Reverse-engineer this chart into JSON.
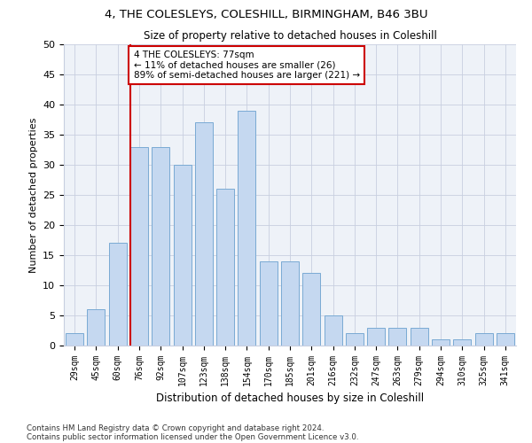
{
  "title_line1": "4, THE COLESLEYS, COLESHILL, BIRMINGHAM, B46 3BU",
  "title_line2": "Size of property relative to detached houses in Coleshill",
  "xlabel": "Distribution of detached houses by size in Coleshill",
  "ylabel": "Number of detached properties",
  "bar_labels": [
    "29sqm",
    "45sqm",
    "60sqm",
    "76sqm",
    "92sqm",
    "107sqm",
    "123sqm",
    "138sqm",
    "154sqm",
    "170sqm",
    "185sqm",
    "201sqm",
    "216sqm",
    "232sqm",
    "247sqm",
    "263sqm",
    "279sqm",
    "294sqm",
    "310sqm",
    "325sqm",
    "341sqm"
  ],
  "bar_values": [
    2,
    6,
    17,
    33,
    33,
    30,
    37,
    26,
    39,
    14,
    14,
    12,
    5,
    2,
    3,
    3,
    3,
    1,
    1,
    2,
    2
  ],
  "bar_color": "#c5d8f0",
  "bar_edgecolor": "#7aaad4",
  "marker_index": 3,
  "marker_color": "#cc0000",
  "annotation_text": "4 THE COLESLEYS: 77sqm\n← 11% of detached houses are smaller (26)\n89% of semi-detached houses are larger (221) →",
  "annotation_box_edgecolor": "#cc0000",
  "ylim": [
    0,
    50
  ],
  "yticks": [
    0,
    5,
    10,
    15,
    20,
    25,
    30,
    35,
    40,
    45,
    50
  ],
  "footer_line1": "Contains HM Land Registry data © Crown copyright and database right 2024.",
  "footer_line2": "Contains public sector information licensed under the Open Government Licence v3.0.",
  "bg_color": "#ffffff",
  "plot_bg_color": "#eef2f8",
  "grid_color": "#c8cfe0"
}
